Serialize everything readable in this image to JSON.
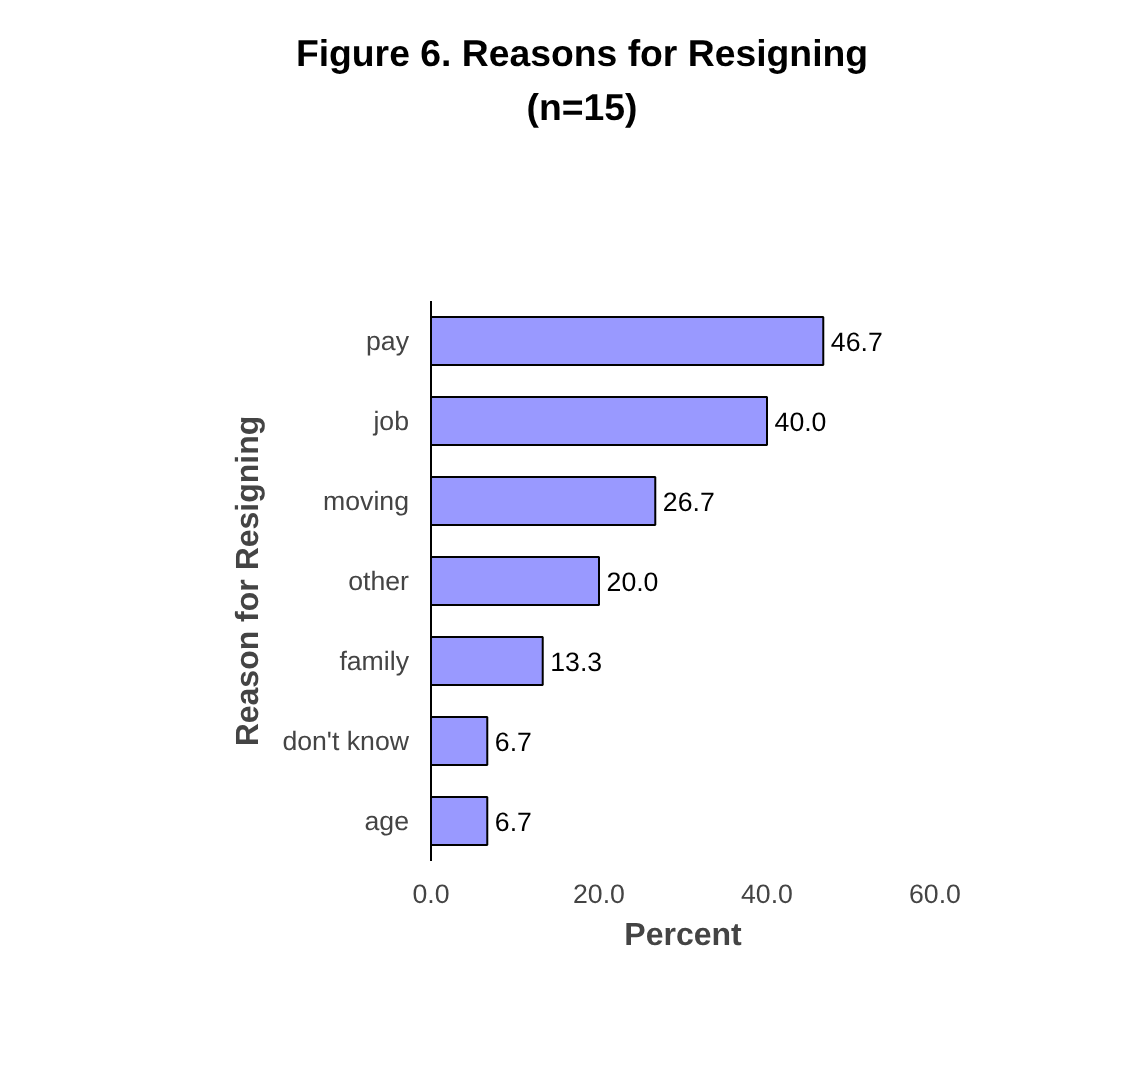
{
  "chart_data": {
    "type": "bar",
    "orientation": "horizontal",
    "title": "Figure 6.  Reasons for Resigning\n(n=15)",
    "xlabel": "Percent",
    "ylabel": "Reason for Resigning",
    "categories": [
      "pay",
      "job",
      "moving",
      "other",
      "family",
      "don't know",
      "age"
    ],
    "values": [
      46.7,
      40.0,
      26.7,
      20.0,
      13.3,
      6.7,
      6.7
    ],
    "value_labels": [
      "46.7",
      "40.0",
      "26.7",
      "20.0",
      "13.3",
      "6.7",
      "6.7"
    ],
    "color": "#9999ff",
    "xlim": [
      0,
      60
    ],
    "xticks": [
      {
        "value": 0,
        "label": "0.0"
      },
      {
        "value": 20,
        "label": "20.0"
      },
      {
        "value": 40,
        "label": "40.0"
      },
      {
        "value": 60,
        "label": "60.0"
      }
    ],
    "grid": false
  }
}
